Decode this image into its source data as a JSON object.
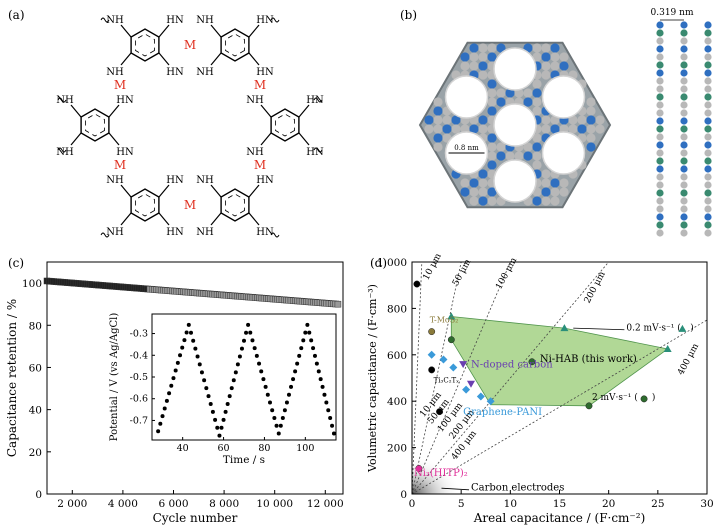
{
  "panels": {
    "a": {
      "label": "(a)",
      "metal": "M",
      "amine": "NH",
      "imine": "HN"
    },
    "b": {
      "label": "(b)",
      "pore": "0.8 nm",
      "stack": "0.319 nm"
    },
    "c": {
      "label": "(c)"
    },
    "d": {
      "label": "(d)"
    }
  },
  "colors": {
    "retention": "#222222",
    "retention_light": "#999999",
    "region": "#a9d48b",
    "region_edge": "#3f8a3a",
    "green_marker": "#2e6b2e",
    "teal_marker": "#2a8f7a",
    "blue_marker": "#3a9ad9",
    "purple_marker": "#6a3fb0",
    "pink": "#e0309a",
    "olive": "#8a7a3a",
    "atom_blue": "#2f6fc0",
    "atom_grey": "#b8b8b8"
  },
  "chart_data": [
    {
      "type": "line",
      "panel": "c",
      "xlabel": "Cycle number",
      "ylabel": "Capacitance retention / %",
      "xlim": [
        1000,
        12700
      ],
      "ylim": [
        0,
        110
      ],
      "xticks": [
        "2 000",
        "4 000",
        "6 000",
        "8 000",
        "10 000",
        "12 000"
      ],
      "xtick_values": [
        2000,
        4000,
        6000,
        8000,
        10000,
        12000
      ],
      "yticks": [
        "0",
        "20",
        "40",
        "60",
        "80",
        "100"
      ],
      "ytick_values": [
        0,
        20,
        40,
        60,
        80,
        100
      ],
      "series": [
        {
          "x": [
            1000,
            12500
          ],
          "y": [
            101,
            90
          ]
        }
      ],
      "inset": {
        "type": "scatter",
        "xlabel": "Time / s",
        "ylabel": "Potential / V (vs Ag/AgCl)",
        "xlim": [
          25,
          115
        ],
        "ylim": [
          -0.79,
          -0.21
        ],
        "xticks": [
          "40",
          "60",
          "80",
          "100"
        ],
        "xtick_values": [
          40,
          60,
          80,
          100
        ],
        "yticks": [
          "-0.3",
          "-0.4",
          "-0.5",
          "-0.6",
          "-0.7"
        ],
        "ytick_values": [
          -0.3,
          -0.4,
          -0.5,
          -0.6,
          -0.7
        ],
        "vertices": [
          [
            28,
            -0.75
          ],
          [
            43,
            -0.26
          ],
          [
            58,
            -0.77
          ],
          [
            72,
            -0.26
          ],
          [
            87,
            -0.76
          ],
          [
            101,
            -0.26
          ],
          [
            114,
            -0.76
          ]
        ]
      }
    },
    {
      "type": "scatter",
      "panel": "d",
      "xlabel": "Areal capacitance / (F·cm⁻²)",
      "ylabel": "Volumetric capacitance / (F·cm⁻³)",
      "xlim": [
        0,
        30
      ],
      "ylim": [
        0,
        1000
      ],
      "xticks": [
        "0",
        "5",
        "10",
        "15",
        "20",
        "25",
        "30"
      ],
      "xtick_values": [
        0,
        5,
        10,
        15,
        20,
        25,
        30
      ],
      "yticks": [
        "0",
        "200",
        "400",
        "600",
        "800",
        "1 000"
      ],
      "ytick_values": [
        0,
        200,
        400,
        600,
        800,
        1000
      ],
      "thickness_lines": [
        {
          "label": "10 μm",
          "slope": 1000
        },
        {
          "label": "50 μm",
          "slope": 200
        },
        {
          "label": "100 μm",
          "slope": 100
        },
        {
          "label": "200 μm",
          "slope": 50
        },
        {
          "label": "400 μm",
          "slope": 25
        }
      ],
      "lower_labels": [
        "10 μm",
        "50 μm",
        "100 μm",
        "200 μm",
        "400 μm"
      ],
      "ni_hab_region": [
        [
          4,
          765
        ],
        [
          15.5,
          715
        ],
        [
          26,
          625
        ],
        [
          18,
          380
        ],
        [
          8,
          385
        ],
        [
          4,
          665
        ]
      ],
      "ni_hab_label": "Ni-HAB (this work)",
      "rate_labels": [
        "0.2 mV·s⁻¹ (",
        ")",
        "2 mV·s⁻¹ (",
        ")"
      ],
      "series": [
        {
          "name": "Ni-HAB 0.2 mV·s⁻¹",
          "marker": "triangle",
          "points": [
            [
              4,
              765
            ],
            [
              15.5,
              715
            ],
            [
              26,
              625
            ]
          ]
        },
        {
          "name": "Ni-HAB 2 mV·s⁻¹",
          "marker": "circle",
          "points": [
            [
              4,
              665
            ],
            [
              12.2,
              570
            ],
            [
              18,
              380
            ]
          ]
        },
        {
          "name": "Ti₃C₂Tₓ",
          "marker": "circle",
          "points": [
            [
              0.5,
              905
            ],
            [
              2,
              535
            ],
            [
              2.8,
              355
            ]
          ]
        },
        {
          "name": "T-MoS₂",
          "marker": "circle",
          "points": [
            [
              2,
              700
            ]
          ]
        },
        {
          "name": "N-doped carbon",
          "marker": "triangle-down",
          "points": [
            [
              5.2,
              560
            ],
            [
              6,
              475
            ]
          ]
        },
        {
          "name": "Graphene-PANI",
          "marker": "diamond",
          "points": [
            [
              2,
              600
            ],
            [
              3.2,
              580
            ],
            [
              4.2,
              545
            ],
            [
              5.5,
              450
            ],
            [
              7,
              420
            ],
            [
              8,
              400
            ]
          ]
        },
        {
          "name": "Ni₃(HITP)₂",
          "marker": "circle",
          "points": [
            [
              0.7,
              110
            ]
          ]
        }
      ],
      "label_strings": {
        "tmos2": "T-MoS₂",
        "ti3c2": "Ti₃C₂Tₓ",
        "ndoped": "N-doped carbon",
        "gpani": "Graphene-PANI",
        "nihitp": "Ni₃(HITP)₂",
        "carbon": "Carbon electrodes"
      }
    }
  ]
}
